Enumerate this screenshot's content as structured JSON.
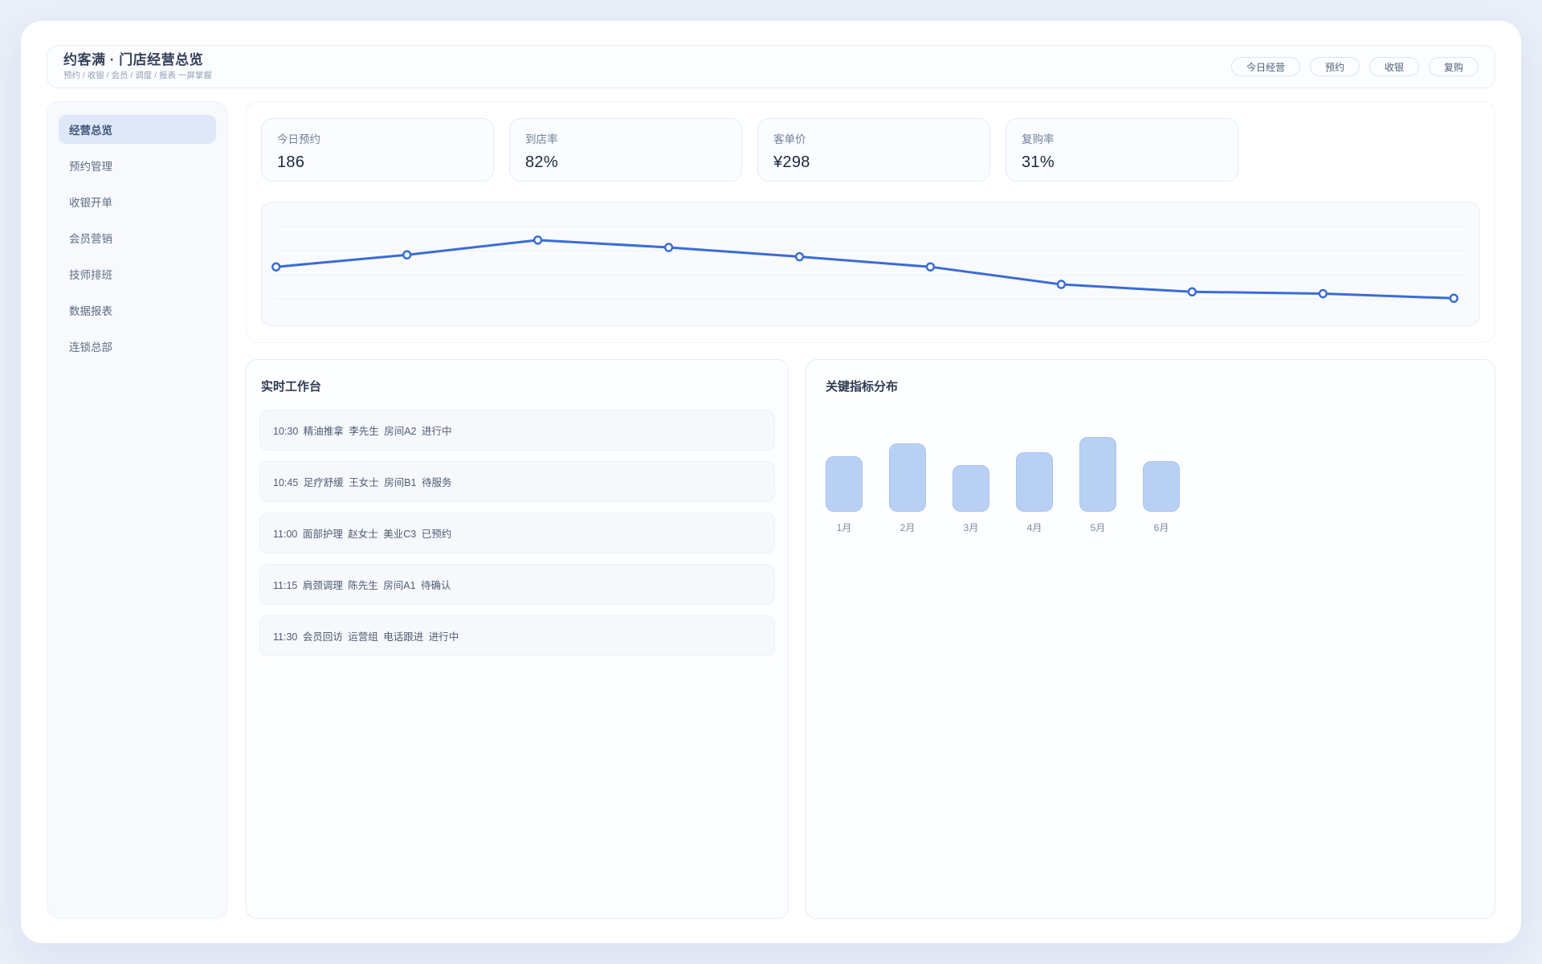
{
  "header": {
    "title": "约客满 · 门店经营总览",
    "subtitle": "预约 / 收银 / 会员 / 调度 / 报表 一屏掌握",
    "actions": [
      "今日经营",
      "预约",
      "收银",
      "复购"
    ]
  },
  "sidebar": {
    "items": [
      {
        "label": "经营总览",
        "active": true
      },
      {
        "label": "预约管理",
        "active": false
      },
      {
        "label": "收银开单",
        "active": false
      },
      {
        "label": "会员营销",
        "active": false
      },
      {
        "label": "技师排班",
        "active": false
      },
      {
        "label": "数据报表",
        "active": false
      },
      {
        "label": "连锁总部",
        "active": false
      }
    ]
  },
  "kpis": [
    {
      "label": "今日预约",
      "value": "186"
    },
    {
      "label": "到店率",
      "value": "82%"
    },
    {
      "label": "客单价",
      "value": "¥298"
    },
    {
      "label": "复购率",
      "value": "31%"
    }
  ],
  "workbench": {
    "title": "实时工作台",
    "items": [
      "10:30 精油推拿 李先生 房间A2 进行中",
      "10:45 足疗舒缓 王女士 房间B1 待服务",
      "11:00 面部护理 赵女士 美业C3 已预约",
      "11:15 肩颈调理 陈先生 房间A1 待确认",
      "11:30 会员回访 运营组 电话跟进 进行中"
    ]
  },
  "metrics": {
    "title": "关键指标分布"
  },
  "chart_data": [
    {
      "type": "line",
      "name": "business-trend",
      "title": "",
      "x": [
        1,
        2,
        3,
        4,
        5,
        6,
        7,
        8,
        9,
        10
      ],
      "values": [
        52,
        65,
        81,
        73,
        63,
        52,
        33,
        25,
        23,
        18
      ],
      "ylim": [
        0,
        100
      ],
      "grid": true,
      "line_color": "#3a6cd6",
      "marker": "open-circle"
    },
    {
      "type": "bar",
      "name": "monthly-distribution",
      "title": "关键指标分布",
      "categories": [
        "1月",
        "2月",
        "3月",
        "4月",
        "5月",
        "6月"
      ],
      "values": [
        69,
        85,
        58,
        74,
        93,
        63
      ],
      "ylim": [
        0,
        100
      ],
      "grid": false,
      "bar_color": "#b9d0f5"
    }
  ],
  "colors": {
    "page_bg": "#e9eef8",
    "accent_line": "#3a6cd6",
    "bar_fill": "#b9d0f5",
    "active_item_bg": "#dfe8f8"
  }
}
